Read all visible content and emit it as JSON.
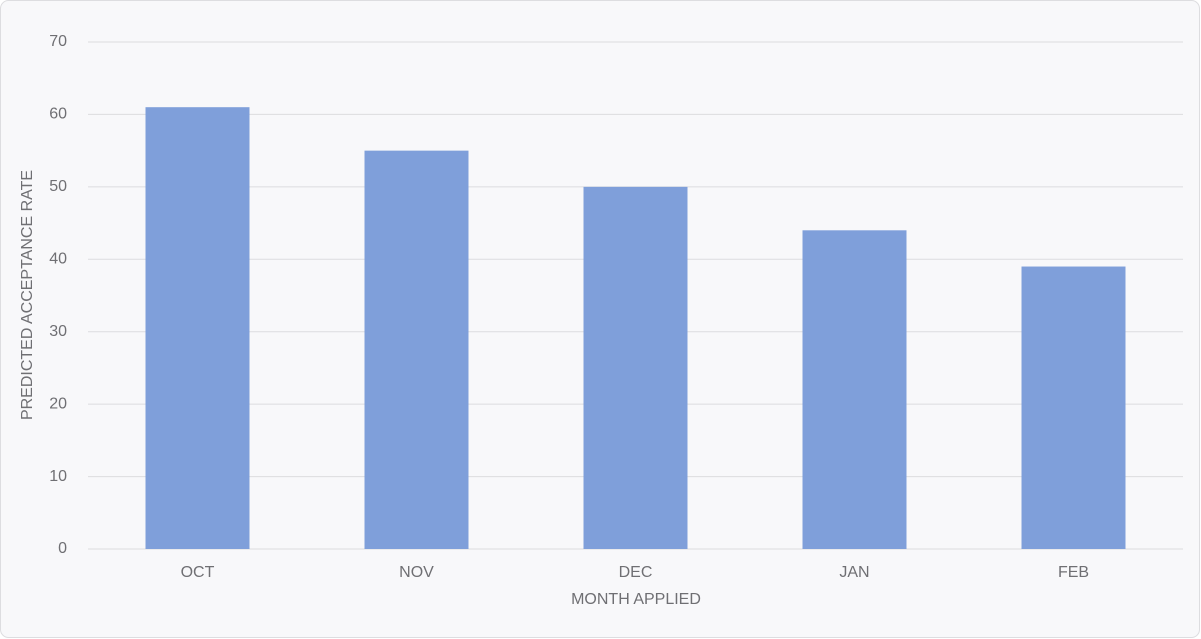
{
  "chart_data": {
    "type": "bar",
    "categories": [
      "OCT",
      "NOV",
      "DEC",
      "JAN",
      "FEB"
    ],
    "values": [
      61,
      55,
      50,
      44,
      39
    ],
    "color": "#7f9fda",
    "x_label": "MONTH APPLIED",
    "y_label": "PREDICTED ACCEPTANCE RATE",
    "ylim": [
      0,
      70
    ],
    "yticks": [
      0,
      10,
      20,
      30,
      40,
      50,
      60,
      70
    ],
    "grid": true
  }
}
